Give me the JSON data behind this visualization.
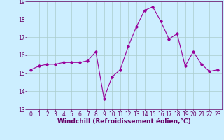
{
  "x": [
    0,
    1,
    2,
    3,
    4,
    5,
    6,
    7,
    8,
    9,
    10,
    11,
    12,
    13,
    14,
    15,
    16,
    17,
    18,
    19,
    20,
    21,
    22,
    23
  ],
  "y": [
    15.2,
    15.4,
    15.5,
    15.5,
    15.6,
    15.6,
    15.6,
    15.7,
    16.2,
    13.6,
    14.8,
    15.2,
    16.5,
    17.6,
    18.5,
    18.7,
    17.9,
    16.9,
    17.2,
    15.4,
    16.2,
    15.5,
    15.1,
    15.2
  ],
  "line_color": "#990099",
  "marker": "D",
  "marker_size": 1.8,
  "linewidth": 0.8,
  "xlabel": "Windchill (Refroidissement éolien,°C)",
  "xlabel_fontsize": 6.5,
  "bg_color": "#cceeff",
  "grid_color": "#aacccc",
  "ylim": [
    13,
    19
  ],
  "xlim": [
    -0.5,
    23.5
  ],
  "yticks": [
    13,
    14,
    15,
    16,
    17,
    18,
    19
  ],
  "xticks": [
    0,
    1,
    2,
    3,
    4,
    5,
    6,
    7,
    8,
    9,
    10,
    11,
    12,
    13,
    14,
    15,
    16,
    17,
    18,
    19,
    20,
    21,
    22,
    23
  ],
  "tick_fontsize": 5.5,
  "tick_color": "#660066"
}
